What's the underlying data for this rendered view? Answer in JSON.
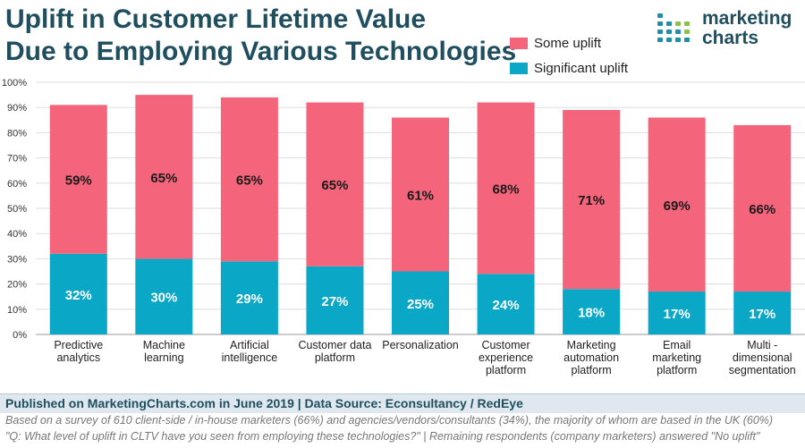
{
  "title": {
    "line1": "Uplift in Customer Lifetime Value",
    "line2": "Due to Employing Various Technologies"
  },
  "logo": {
    "line1": "marketing",
    "line2": "charts",
    "icon": "dot-grid-logo-icon"
  },
  "colors": {
    "some": "#f4647a",
    "significant": "#0aa7c6",
    "title": "#1f4e5f",
    "grid": "#dddddd"
  },
  "chart_data": {
    "type": "bar",
    "stacked": true,
    "categories": [
      [
        "Predictive",
        "analytics"
      ],
      [
        "Machine",
        "learning"
      ],
      [
        "Artificial",
        "intelligence"
      ],
      [
        "Customer data",
        "platform"
      ],
      [
        "Personalization"
      ],
      [
        "Customer",
        "experience",
        "platform"
      ],
      [
        "Marketing",
        "automation",
        "platform"
      ],
      [
        "Email",
        "marketing",
        "platform"
      ],
      [
        "Multi -",
        "dimensional",
        "segmentation"
      ]
    ],
    "series": [
      {
        "name": "Significant uplift",
        "values": [
          32,
          30,
          29,
          27,
          25,
          24,
          18,
          17,
          17
        ]
      },
      {
        "name": "Some uplift",
        "values": [
          59,
          65,
          65,
          65,
          61,
          68,
          71,
          69,
          66
        ]
      }
    ],
    "value_format": "%",
    "ylim": [
      0,
      100
    ],
    "yticks": [
      0,
      10,
      20,
      30,
      40,
      50,
      60,
      70,
      80,
      90,
      100
    ],
    "grid": true,
    "legend": "top-right"
  },
  "footer": {
    "published": "Published on MarketingCharts.com in June 2019 | Data Source: Econsultancy / RedEye",
    "note1": "Based on a survey of 610 client-side / in-house marketers (66%) and agencies/vendors/consultants (34%), the majority of whom are based in the UK (60%)",
    "note2": "\"Q: What level of uplift in CLTV have you seen from employing these technologies?\" | Remaining respondents (company marketers) answered \"No uplift\""
  }
}
